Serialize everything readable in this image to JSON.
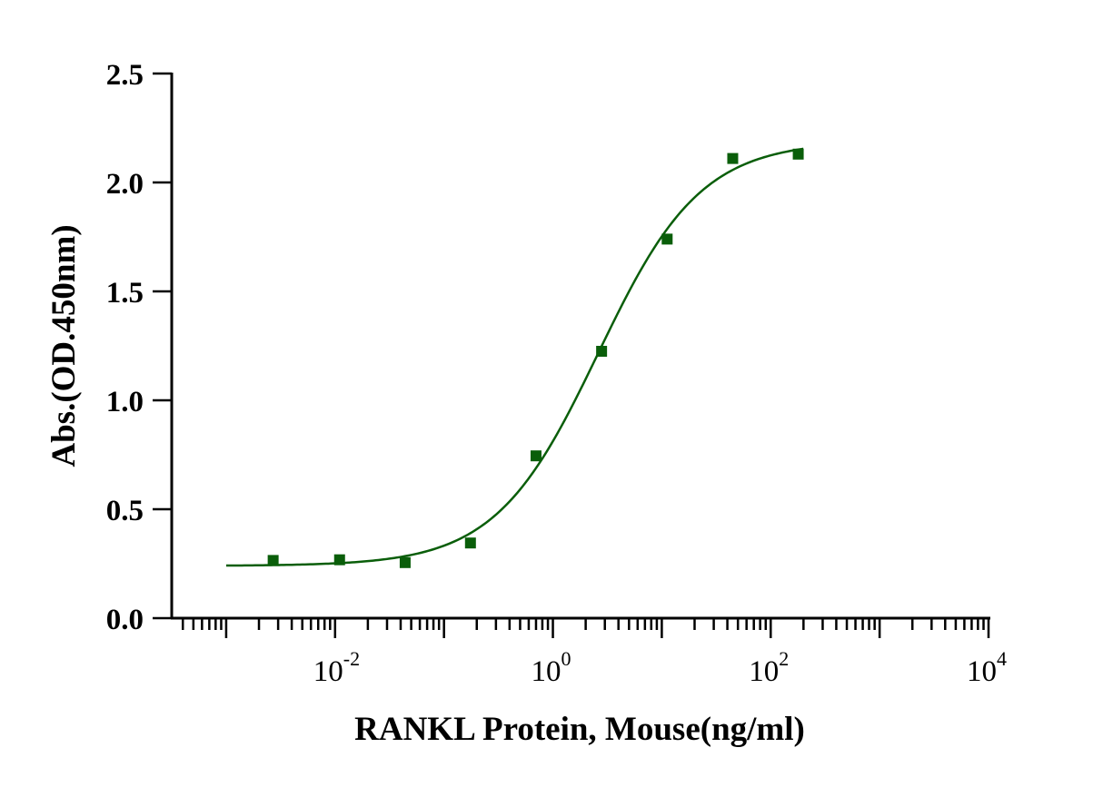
{
  "chart_data": {
    "type": "scatter",
    "title": "",
    "xlabel": "RANKL Protein, Mouse(ng/ml)",
    "ylabel": "Abs.(OD.450nm)",
    "xscale": "log10",
    "xlim_log10": [
      -3.5,
      4
    ],
    "ylim": [
      0,
      2.5
    ],
    "yticks": [
      "0.0",
      "0.5",
      "1.0",
      "1.5",
      "2.0",
      "2.5"
    ],
    "xticks": [
      {
        "base": "10",
        "exp": "-2",
        "log10": -2
      },
      {
        "base": "10",
        "exp": "0",
        "log10": 0
      },
      {
        "base": "10",
        "exp": "2",
        "log10": 2
      },
      {
        "base": "10",
        "exp": "4",
        "log10": 4
      }
    ],
    "series": [
      {
        "name": "RANKL Protein, Mouse",
        "x": [
          0.0027,
          0.011,
          0.044,
          0.175,
          0.7,
          2.8,
          11.2,
          44.8,
          179
        ],
        "y": [
          0.265,
          0.268,
          0.255,
          0.345,
          0.745,
          1.225,
          1.74,
          2.11,
          2.13
        ],
        "fit": {
          "model": "4PL",
          "bottom": 0.24,
          "top": 2.19,
          "ec50": 2.6,
          "hill": 0.92,
          "range_log10": [
            -3.0,
            2.3
          ]
        }
      }
    ],
    "colors": {
      "marker": "#0a5e0a",
      "curve": "#0a5e0a",
      "axis": "#000000"
    }
  }
}
